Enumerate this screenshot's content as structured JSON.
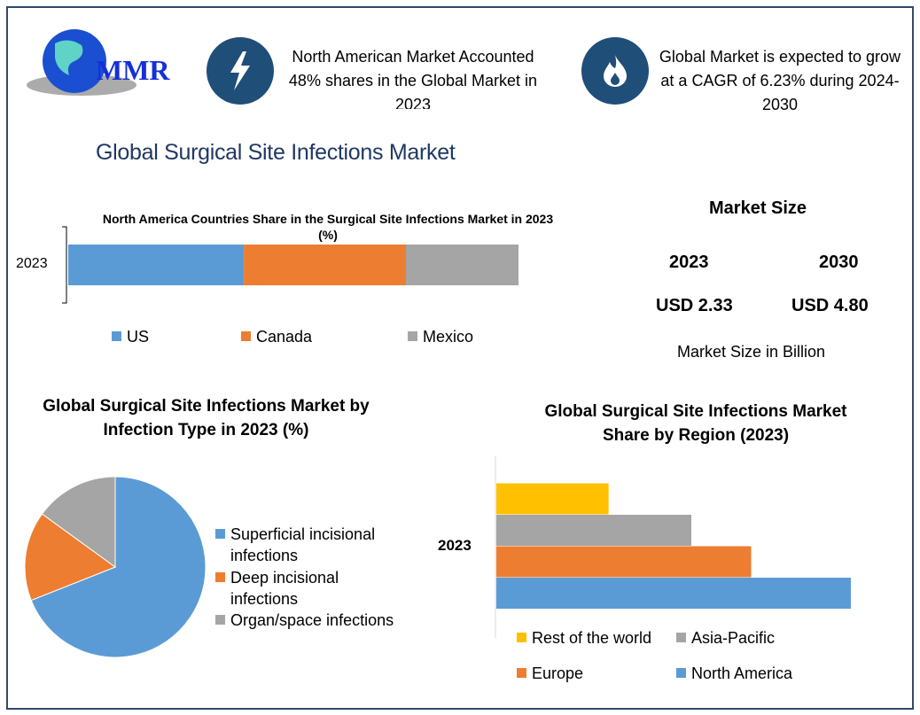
{
  "logo": {
    "text": "MMR"
  },
  "info1": {
    "icon": "lightning-icon",
    "text": "North American Market Accounted 48% shares in the Global Market in 2023"
  },
  "info2": {
    "icon": "flame-icon",
    "text": "Global Market is expected to grow at a CAGR of 6.23% during 2024-2030"
  },
  "page_title": "Global Surgical Site Infections Market",
  "market_size": {
    "title": "Market Size",
    "year1": "2023",
    "year2": "2030",
    "value1": "USD 2.33",
    "value2": "USD 4.80",
    "unit_note": "Market Size in Billion"
  },
  "colors": {
    "blue": "#5b9bd5",
    "orange": "#ed7d31",
    "gray": "#a5a5a5",
    "yellow": "#ffc000",
    "navy": "#1f4e79"
  },
  "chart_data": [
    {
      "type": "bar",
      "stacked": true,
      "orientation": "horizontal",
      "title": "North America Countries Share in the Surgical Site Infections Market in 2023 (%)",
      "categories": [
        "2023"
      ],
      "series": [
        {
          "name": "US",
          "values": [
            39
          ]
        },
        {
          "name": "Canada",
          "values": [
            36
          ]
        },
        {
          "name": "Mexico",
          "values": [
            25
          ]
        }
      ],
      "legend": "bottom"
    },
    {
      "type": "pie",
      "title": "Global Surgical Site Infections Market by Infection Type in 2023 (%)",
      "labels": [
        "Superficial incisional infections",
        "Deep incisional infections",
        "Organ/space infections"
      ],
      "values": [
        69,
        16,
        15
      ],
      "legend": "right"
    },
    {
      "type": "bar",
      "orientation": "horizontal",
      "title": "Global Surgical Site Infections Market Share by Region (2023)",
      "categories": [
        "2023"
      ],
      "series": [
        {
          "name": "North America",
          "values": [
            48
          ]
        },
        {
          "name": "Europe",
          "values": [
            34.5
          ]
        },
        {
          "name": "Asia-Pacific",
          "values": [
            26.4
          ]
        },
        {
          "name": "Rest of the world",
          "values": [
            15.2
          ]
        }
      ],
      "legend": "bottom"
    }
  ]
}
